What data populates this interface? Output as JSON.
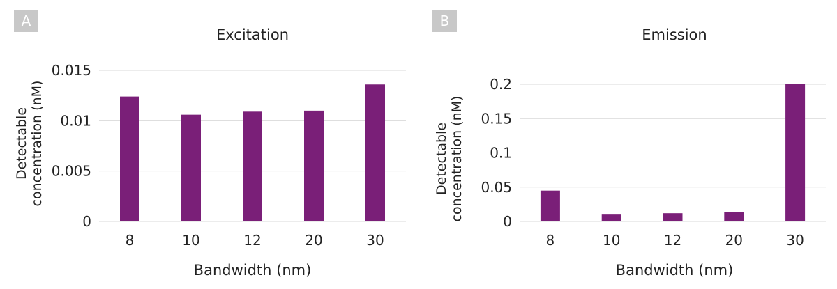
{
  "chart_data": [
    {
      "type": "bar",
      "panel_label": "A",
      "title": "Excitation",
      "xlabel": "Bandwidth (nm)",
      "ylabel": [
        "Detectable",
        "concentration (nM)"
      ],
      "categories": [
        "8",
        "10",
        "12",
        "20",
        "30"
      ],
      "values": [
        0.0124,
        0.0106,
        0.0109,
        0.011,
        0.0136
      ],
      "ylim": [
        0,
        0.015
      ],
      "yticks": [
        0,
        0.005,
        0.01,
        0.015
      ],
      "ytick_labels": [
        "0",
        "0.005",
        "0.01",
        "0.015"
      ],
      "grid": true,
      "bar_color": "#7a1f78",
      "grid_color": "#d9d9d9"
    },
    {
      "type": "bar",
      "panel_label": "B",
      "title": "Emission",
      "xlabel": "Bandwidth (nm)",
      "ylabel": [
        "Detectable",
        "concentration (nM)"
      ],
      "categories": [
        "8",
        "10",
        "12",
        "20",
        "30"
      ],
      "values": [
        0.045,
        0.01,
        0.012,
        0.014,
        0.2
      ],
      "ylim": [
        0,
        0.2
      ],
      "yticks": [
        0,
        0.05,
        0.1,
        0.15,
        0.2
      ],
      "ytick_labels": [
        "0",
        "0.05",
        "0.1",
        "0.15",
        "0.2"
      ],
      "grid": true,
      "bar_color": "#7a1f78",
      "grid_color": "#d9d9d9"
    }
  ]
}
